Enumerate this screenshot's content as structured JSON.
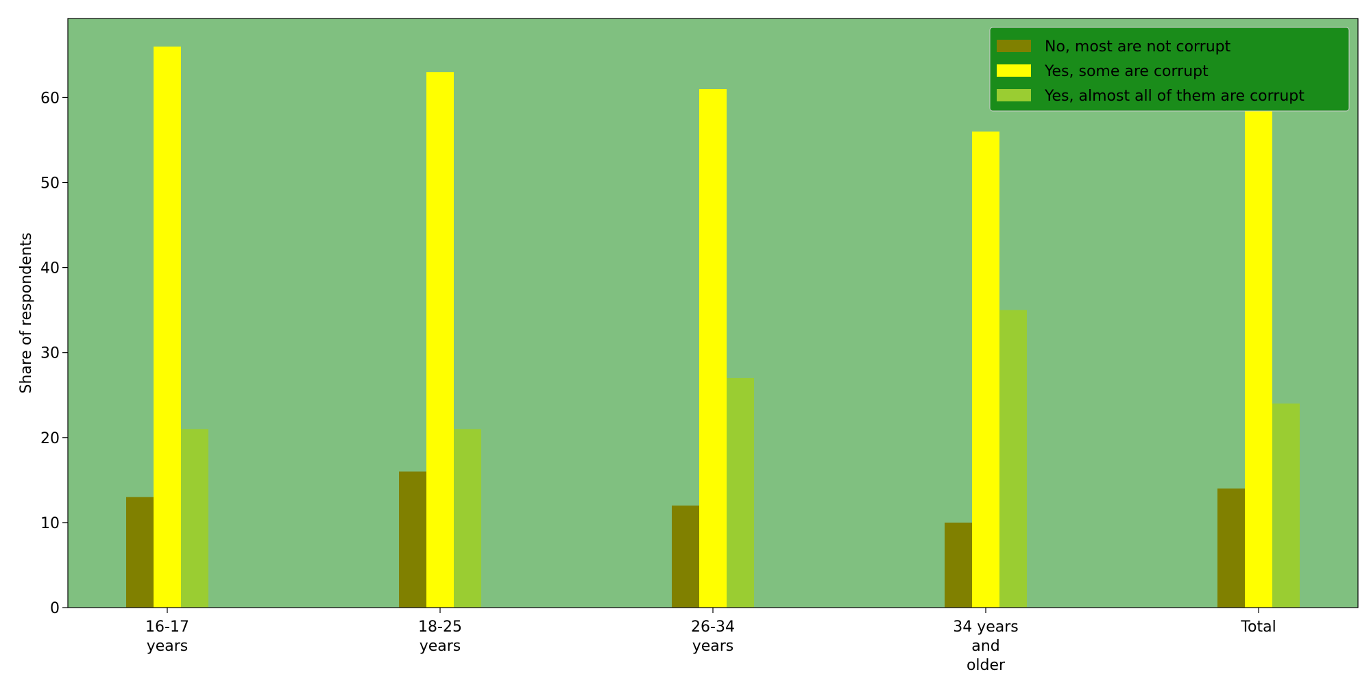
{
  "chart_data": {
    "type": "bar",
    "categories": [
      [
        "16-17",
        "years"
      ],
      [
        "18-25",
        "years"
      ],
      [
        "26-34",
        "years"
      ],
      [
        "34 years",
        "and",
        "older"
      ],
      [
        "Total"
      ]
    ],
    "series": [
      {
        "name": "No, most are not corrupt",
        "color": "#808000",
        "values": [
          13,
          16,
          12,
          10,
          14
        ]
      },
      {
        "name": "Yes, some are corrupt",
        "color": "#ffff00",
        "values": [
          66,
          63,
          61,
          56,
          62
        ]
      },
      {
        "name": "Yes, almost all of them are corrupt",
        "color": "#9acd32",
        "values": [
          21,
          21,
          27,
          35,
          24
        ]
      }
    ],
    "xlabel": "",
    "ylabel": "Share of respondents",
    "ylim": [
      0,
      69.3
    ],
    "yticks": [
      0,
      10,
      20,
      30,
      40,
      50,
      60
    ],
    "plot_background": "#80c080",
    "legend_background": "#1a8c1a",
    "legend_position": "top-right",
    "grid": false
  }
}
